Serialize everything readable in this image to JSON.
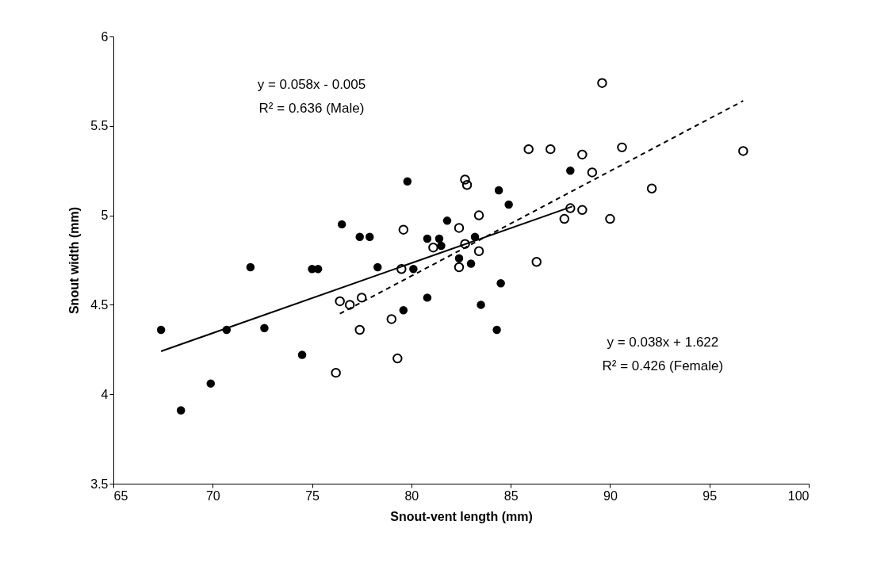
{
  "chart_data": {
    "type": "scatter",
    "xlabel": "Snout-vent length (mm)",
    "ylabel": "Snout width (mm)",
    "xlim": [
      65,
      100
    ],
    "xticks": [
      65,
      70,
      75,
      80,
      85,
      90,
      95,
      100
    ],
    "ylim": [
      3.5,
      6
    ],
    "yticks": [
      3.5,
      4,
      4.5,
      5,
      5.5,
      6
    ],
    "grid": false,
    "marker": "circle",
    "series": [
      {
        "color": "#000000",
        "x": [
          67.4,
          68.4,
          69.9,
          70.7,
          71.9,
          72.6,
          74.5,
          75.0,
          75.3,
          76.5,
          77.4,
          77.9,
          78.3,
          79.6,
          79.8,
          80.1,
          80.8,
          80.8,
          81.4,
          81.5,
          81.8,
          82.4,
          83.0,
          83.2,
          83.5,
          84.3,
          84.4,
          84.5,
          84.9,
          88.0
        ],
        "values": [
          4.36,
          3.91,
          4.06,
          4.36,
          4.71,
          4.37,
          4.22,
          4.7,
          4.7,
          4.95,
          4.88,
          4.88,
          4.71,
          4.47,
          5.19,
          4.7,
          4.54,
          4.87,
          4.87,
          4.83,
          4.97,
          4.76,
          4.73,
          4.88,
          4.5,
          4.36,
          5.14,
          4.62,
          5.06,
          5.25
        ]
      },
      {
        "color": "#000000",
        "x": [
          76.2,
          76.4,
          76.9,
          77.4,
          77.5,
          79.0,
          79.3,
          79.5,
          79.6,
          81.1,
          82.4,
          82.4,
          82.7,
          82.7,
          82.8,
          83.4,
          83.4,
          85.9,
          86.3,
          87.0,
          87.7,
          88.0,
          88.6,
          88.6,
          89.1,
          89.6,
          90.0,
          90.6,
          92.1,
          96.7
        ],
        "values": [
          4.12,
          4.52,
          4.5,
          4.36,
          4.54,
          4.42,
          4.2,
          4.7,
          4.92,
          4.82,
          4.71,
          4.93,
          4.84,
          5.2,
          5.17,
          5.0,
          4.8,
          5.37,
          4.74,
          5.37,
          4.98,
          5.04,
          5.03,
          5.34,
          5.24,
          5.74,
          4.98,
          5.38,
          5.15,
          5.36
        ]
      },
      {
        "type": "line",
        "color": "#000000",
        "line_style": "solid",
        "marker": "none",
        "x": [
          67.4,
          88.1
        ],
        "values": [
          4.24,
          5.05
        ]
      },
      {
        "type": "line",
        "color": "#000000",
        "line_style": "dashed",
        "marker": "none",
        "x": [
          76.4,
          96.7
        ],
        "values": [
          4.45,
          5.64
        ]
      }
    ],
    "annotations": [
      "y = 0.058x - 0.005",
      "R² = 0.636 (Male)",
      "y = 0.038x + 1.622",
      "R² = 0.426 (Female)"
    ]
  }
}
